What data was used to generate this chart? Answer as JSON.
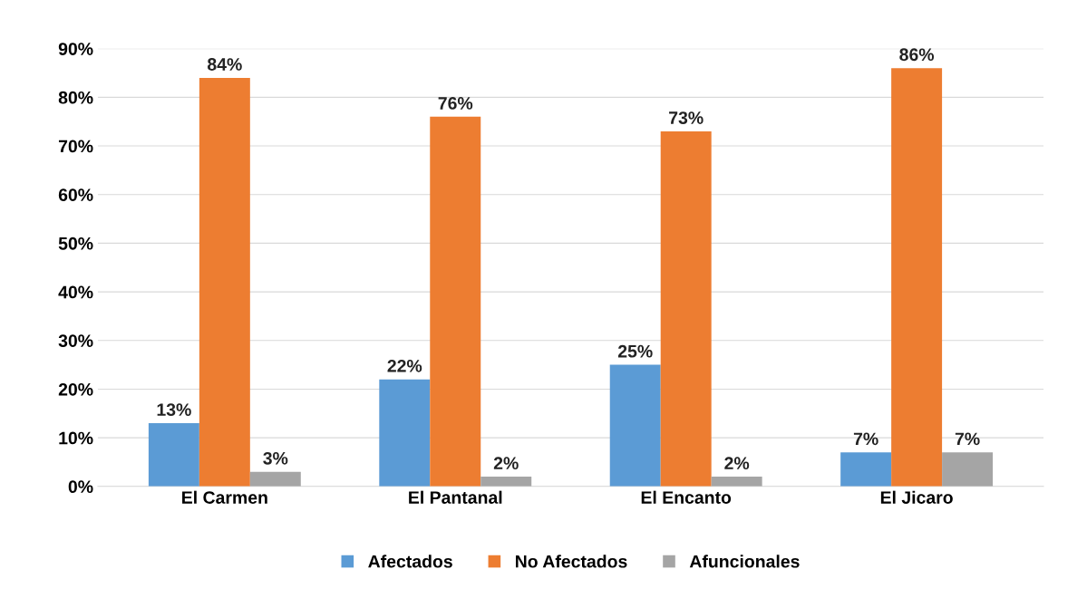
{
  "chart_data": {
    "type": "bar",
    "categories": [
      "El Carmen",
      "El Pantanal",
      "El Encanto",
      "El Jicaro"
    ],
    "series": [
      {
        "name": "Afectados",
        "color": "#5b9bd5",
        "values": [
          13,
          22,
          25,
          7
        ],
        "value_labels": [
          "13%",
          "22%",
          "25%",
          "7%"
        ]
      },
      {
        "name": "No Afectados",
        "color": "#ed7d31",
        "values": [
          84,
          76,
          73,
          86
        ],
        "value_labels": [
          "84%",
          "76%",
          "73%",
          "86%"
        ]
      },
      {
        "name": "Afuncionales",
        "color": "#a5a5a5",
        "values": [
          3,
          2,
          2,
          7
        ],
        "value_labels": [
          "3%",
          "2%",
          "2%",
          "7%"
        ]
      }
    ],
    "ylim": [
      0,
      90
    ],
    "yticks": [
      {
        "value": 0,
        "label": "0%"
      },
      {
        "value": 10,
        "label": "10%"
      },
      {
        "value": 20,
        "label": "20%"
      },
      {
        "value": 30,
        "label": "30%"
      },
      {
        "value": 40,
        "label": "40%"
      },
      {
        "value": 50,
        "label": "50%"
      },
      {
        "value": 60,
        "label": "60%"
      },
      {
        "value": 70,
        "label": "70%"
      },
      {
        "value": 80,
        "label": "80%"
      },
      {
        "value": 90,
        "label": "90%"
      }
    ],
    "grid": "y",
    "legend": "bottom"
  }
}
